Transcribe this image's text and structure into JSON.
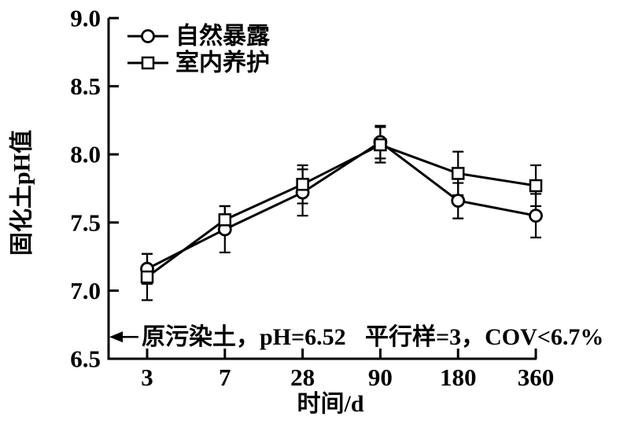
{
  "figure": {
    "background": "#ffffff",
    "ink_color": "#000000"
  },
  "chart_data": {
    "type": "line",
    "x_categories": [
      "3",
      "7",
      "28",
      "90",
      "180",
      "360"
    ],
    "xlabel": "时间/d",
    "ylabel": "固化土pH值",
    "ylim": [
      6.5,
      9.0
    ],
    "y_ticks": [
      "6.5",
      "7.0",
      "7.5",
      "8.0",
      "8.5",
      "9.0"
    ],
    "grid": false,
    "legend_position": "top-left-inside",
    "error_bars": true,
    "series": [
      {
        "name": "自然暴露",
        "marker": "circle",
        "values": [
          7.16,
          7.45,
          7.72,
          8.09,
          7.66,
          7.55
        ],
        "errors": [
          0.11,
          0.17,
          0.17,
          0.12,
          0.13,
          0.16
        ]
      },
      {
        "name": "室内养护",
        "marker": "square",
        "values": [
          7.1,
          7.52,
          7.78,
          8.07,
          7.86,
          7.77
        ],
        "errors": [
          0.17,
          0.1,
          0.14,
          0.13,
          0.16,
          0.15
        ]
      }
    ],
    "annotations": [
      {
        "text": "原污染土，pH=6.52",
        "arrow": "left",
        "y": 6.66
      },
      {
        "text": "平行样=3，COV<6.7%"
      }
    ]
  }
}
